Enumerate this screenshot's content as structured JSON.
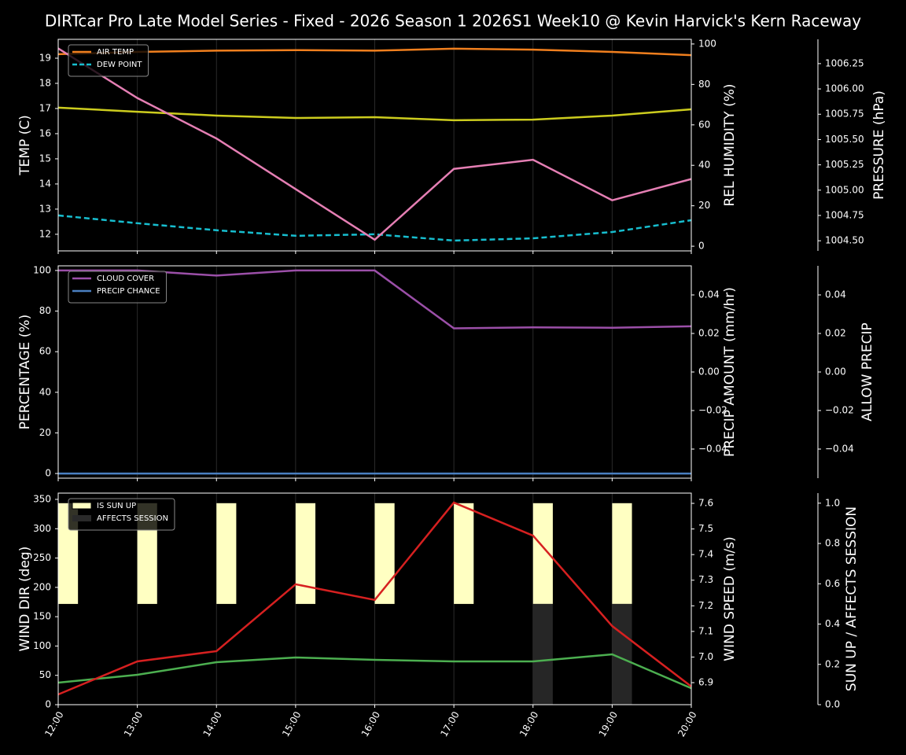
{
  "chart_data": [
    {
      "type": "line",
      "title": "DIRTcar Pro Late Model Series - Fixed - 2026 Season 1 2026S1 Week10 @ Kevin Harvick's Kern Raceway",
      "ylabel": "TEMP (C)",
      "ylabel_color": "#ffffff",
      "ylim": [
        11.34,
        19.75
      ],
      "yticks": [
        12,
        13,
        14,
        15,
        16,
        17,
        18,
        19
      ],
      "y2label": "REL HUMIDITY (%)",
      "y2label_color": "#cccc1e",
      "y2lim": [
        -2.3,
        102.3
      ],
      "y2ticks": [
        0,
        20,
        40,
        60,
        80,
        100
      ],
      "y3label": "PRESSURE (hPa)",
      "y3label_color": "#e57fb4",
      "y3lim": [
        1004.4,
        1006.49
      ],
      "y3ticks": [
        {
          "value": 1004.5,
          "label": "1004.50"
        },
        {
          "value": 1004.75,
          "label": "1004.75"
        },
        {
          "value": 1005,
          "label": "1005.00"
        },
        {
          "value": 1005.25,
          "label": "1005.25"
        },
        {
          "value": 1005.5,
          "label": "1005.50"
        },
        {
          "value": 1005.75,
          "label": "1005.75"
        },
        {
          "value": 1006,
          "label": "1006.00"
        },
        {
          "value": 1006.25,
          "label": "1006.25"
        }
      ],
      "legend": "upper left",
      "xgrid": true,
      "series": [
        {
          "name": "AIR TEMP",
          "color": "#f07f1e",
          "axis": "y",
          "values": [
            19.16,
            19.25,
            19.3,
            19.32,
            19.3,
            19.38,
            19.34,
            19.25,
            19.12
          ]
        },
        {
          "name": "DEW POINT",
          "color": "#17becf",
          "axis": "y",
          "dashed": true,
          "values": [
            12.75,
            12.44,
            12.16,
            11.94,
            12.0,
            11.75,
            11.84,
            12.09,
            12.56
          ]
        },
        {
          "color": "#cccc1e",
          "axis": "y2",
          "values": [
            68.5,
            66.5,
            64.6,
            63.4,
            63.8,
            62.3,
            62.6,
            64.6,
            67.7
          ]
        },
        {
          "color": "#e57fb4",
          "axis": "y3",
          "values": [
            1006.4,
            1005.91,
            1005.51,
            1005.01,
            1004.51,
            1005.21,
            1005.3,
            1004.9,
            1005.11
          ]
        }
      ]
    },
    {
      "type": "line",
      "ylabel": "PERCENTAGE (%)",
      "ylabel_color": "#ffffff",
      "ylim": [
        -2.3,
        102.3
      ],
      "yticks": [
        0,
        20,
        40,
        60,
        80,
        100
      ],
      "y2label": "PRECIP AMOUNT (mm/hr)",
      "y2label_color": "#b05a2f",
      "y2lim": [
        -0.0551,
        0.0551
      ],
      "y2ticks": [
        {
          "value": -0.04,
          "label": "−0.04"
        },
        {
          "value": -0.02,
          "label": "−0.02"
        },
        {
          "value": 0,
          "label": "0.00"
        },
        {
          "value": 0.02,
          "label": "0.02"
        },
        {
          "value": 0.04,
          "label": "0.04"
        }
      ],
      "y3label": "ALLOW PRECIP",
      "y3label_color": "#ffffff",
      "y3lim": [
        -0.0551,
        0.0551
      ],
      "y3ticks": [
        {
          "value": -0.04,
          "label": "−0.04"
        },
        {
          "value": -0.02,
          "label": "−0.02"
        },
        {
          "value": 0,
          "label": "0.00"
        },
        {
          "value": 0.02,
          "label": "0.02"
        },
        {
          "value": 0.04,
          "label": "0.04"
        }
      ],
      "legend": "upper left",
      "xgrid": true,
      "series": [
        {
          "name": "CLOUD COVER",
          "color": "#9b4fa8",
          "axis": "y",
          "values": [
            100,
            100,
            97.5,
            100,
            100,
            71.5,
            72,
            71.8,
            72.5
          ]
        },
        {
          "name": "PRECIP CHANCE",
          "color": "#4a7fc0",
          "axis": "y",
          "values": [
            0,
            0,
            0,
            0,
            0,
            0,
            0,
            0,
            0
          ]
        }
      ]
    },
    {
      "type": "line",
      "categories": [
        "12:00",
        "13:00",
        "14:00",
        "15:00",
        "16:00",
        "17:00",
        "18:00",
        "19:00",
        "20:00"
      ],
      "ylabel": "WIND DIR (deg)",
      "ylabel_color": "#4caf50",
      "ylim": [
        0,
        360.7
      ],
      "yticks": [
        0,
        50,
        100,
        150,
        200,
        250,
        300,
        350
      ],
      "y2label": "WIND SPEED (m/s)",
      "y2label_color": "#d62020",
      "y2lim": [
        6.814,
        7.64
      ],
      "y2ticks": [
        6.9,
        {
          "value": 7,
          "label": "7.0"
        },
        7.1,
        7.2,
        7.3,
        7.4,
        7.5,
        7.6
      ],
      "y3label": "SUN UP / AFFECTS SESSION",
      "y3label_color": "#ffffff",
      "y3lim": [
        0,
        1.05
      ],
      "y3ticks": [
        {
          "value": 0,
          "label": "0.0"
        },
        0.2,
        0.4,
        0.6,
        0.8,
        {
          "value": 1,
          "label": "1.0"
        }
      ],
      "legend": "upper left",
      "xgrid": true,
      "series": [
        {
          "name": "IS SUN UP",
          "color": "#ffffc2",
          "axis": "y3",
          "kind": "bar",
          "half": "upper",
          "values": [
            1,
            1,
            1,
            1,
            1,
            1,
            1,
            1,
            0
          ]
        },
        {
          "name": "AFFECTS SESSION",
          "color": "#2a2a2a",
          "axis": "y3",
          "kind": "bar",
          "half": "lower",
          "values": [
            0,
            0,
            0,
            0,
            0,
            0,
            1,
            1,
            0
          ]
        },
        {
          "color": "#4caf50",
          "axis": "y",
          "values": [
            37.5,
            51,
            72.4,
            80.5,
            76.4,
            73.8,
            73.8,
            85.8,
            28
          ]
        },
        {
          "color": "#d62020",
          "axis": "y2",
          "values": [
            6.854,
            6.983,
            7.023,
            7.284,
            7.223,
            7.603,
            7.474,
            7.121,
            6.885
          ]
        }
      ]
    }
  ]
}
